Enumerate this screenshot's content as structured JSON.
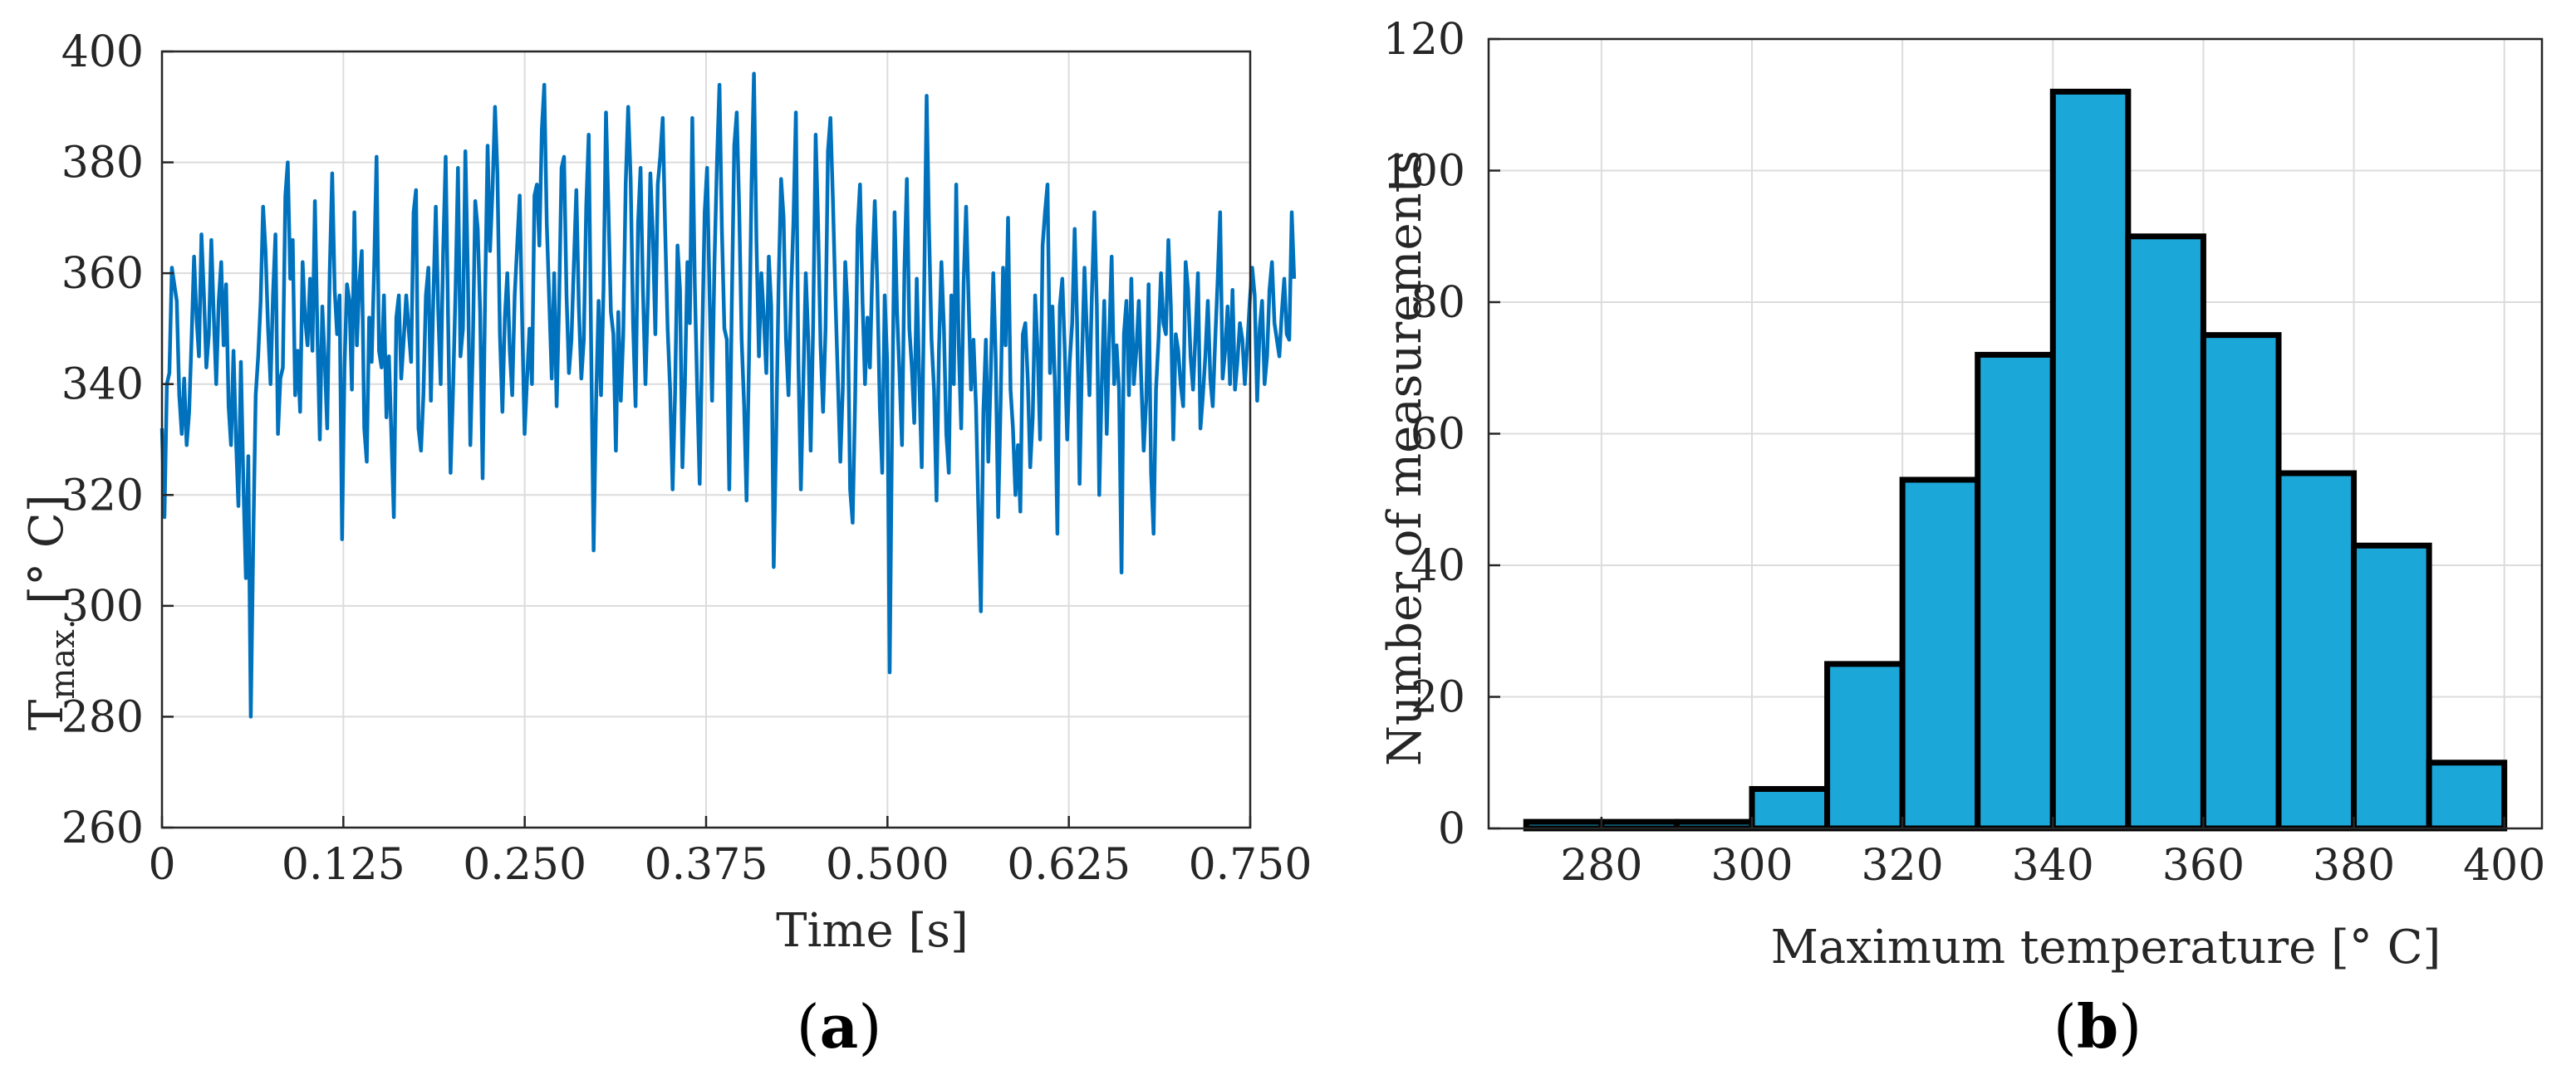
{
  "chart_data": [
    {
      "type": "line",
      "panel_label": "a",
      "xlabel": "Time [s]",
      "ylabel_main": "T",
      "ylabel_subscript": "max.",
      "ylabel_unit": " [° C]",
      "xlim": [
        0,
        0.75
      ],
      "ylim": [
        260,
        400
      ],
      "xticks": [
        0,
        0.125,
        0.25,
        0.375,
        0.5,
        0.625,
        0.75
      ],
      "xtick_labels": [
        "0",
        "0.125",
        "0.250",
        "0.375",
        "0.500",
        "0.625",
        "0.750"
      ],
      "yticks": [
        260,
        280,
        300,
        320,
        340,
        360,
        380,
        400
      ],
      "ytick_labels": [
        "260",
        "280",
        "300",
        "320",
        "340",
        "360",
        "380",
        "400"
      ],
      "grid": true,
      "line_color": "#0072BD",
      "series": [
        {
          "x_start": 0.0,
          "x_step": 0.0017,
          "values": [
            332,
            316,
            340,
            342,
            361,
            358,
            355,
            338,
            331,
            341,
            329,
            335,
            348,
            363,
            352,
            345,
            367,
            356,
            343,
            349,
            366,
            352,
            340,
            355,
            362,
            347,
            358,
            336,
            329,
            346,
            330,
            318,
            344,
            322,
            305,
            327,
            280,
            312,
            338,
            345,
            355,
            372,
            364,
            350,
            340,
            356,
            367,
            331,
            341,
            343,
            374,
            380,
            359,
            366,
            338,
            346,
            335,
            362,
            352,
            347,
            359,
            346,
            373,
            349,
            330,
            354,
            344,
            332,
            360,
            378,
            357,
            349,
            356,
            312,
            343,
            358,
            355,
            339,
            371,
            347,
            358,
            364,
            332,
            326,
            352,
            344,
            361,
            381,
            346,
            343,
            356,
            334,
            345,
            331,
            316,
            352,
            356,
            341,
            348,
            356,
            350,
            344,
            371,
            375,
            332,
            328,
            338,
            356,
            361,
            337,
            355,
            372,
            353,
            340,
            364,
            381,
            352,
            324,
            339,
            357,
            379,
            345,
            350,
            382,
            360,
            329,
            346,
            373,
            368,
            353,
            323,
            356,
            383,
            364,
            375,
            390,
            378,
            349,
            335,
            352,
            360,
            346,
            338,
            356,
            365,
            374,
            352,
            331,
            341,
            350,
            340,
            374,
            376,
            365,
            386,
            394,
            369,
            355,
            341,
            360,
            336,
            355,
            379,
            381,
            356,
            342,
            348,
            362,
            375,
            354,
            341,
            348,
            372,
            385,
            346,
            310,
            337,
            355,
            338,
            357,
            389,
            372,
            353,
            349,
            328,
            353,
            337,
            349,
            376,
            390,
            377,
            351,
            336,
            369,
            379,
            357,
            340,
            356,
            378,
            367,
            349,
            376,
            381,
            388,
            368,
            350,
            339,
            321,
            338,
            365,
            357,
            325,
            340,
            362,
            351,
            388,
            358,
            339,
            322,
            348,
            371,
            379,
            356,
            337,
            362,
            380,
            394,
            368,
            350,
            348,
            321,
            354,
            383,
            389,
            372,
            348,
            336,
            319,
            345,
            376,
            396,
            366,
            345,
            360,
            352,
            342,
            363,
            354,
            307,
            331,
            358,
            377,
            370,
            348,
            338,
            356,
            369,
            389,
            344,
            321,
            340,
            360,
            348,
            328,
            351,
            385,
            369,
            347,
            335,
            350,
            382,
            388,
            373,
            356,
            341,
            326,
            339,
            362,
            353,
            321,
            315,
            337,
            368,
            376,
            355,
            340,
            352,
            343,
            361,
            373,
            358,
            336,
            324,
            356,
            344,
            288,
            333,
            371,
            353,
            342,
            329,
            361,
            377,
            350,
            343,
            333,
            359,
            341,
            325,
            357,
            392,
            367,
            348,
            339,
            319,
            346,
            362,
            350,
            331,
            324,
            356,
            340,
            376,
            347,
            332,
            358,
            372,
            355,
            339,
            348,
            336,
            317,
            299,
            335,
            348,
            326,
            342,
            360,
            345,
            316,
            337,
            361,
            347,
            370,
            339,
            332,
            320,
            329,
            317,
            349,
            351,
            341,
            325,
            334,
            356,
            346,
            330,
            365,
            371,
            376,
            342,
            354,
            340,
            313,
            354,
            359,
            346,
            330,
            344,
            351,
            368,
            351,
            322,
            345,
            361,
            349,
            338,
            356,
            371,
            354,
            320,
            340,
            355,
            331,
            348,
            363,
            340,
            347,
            339,
            306,
            349,
            355,
            338,
            359,
            340,
            346,
            355,
            341,
            328,
            337,
            358,
            324,
            313,
            339,
            348,
            360,
            351,
            349,
            366,
            354,
            330,
            349,
            346,
            340,
            336,
            362,
            357,
            345,
            339,
            349,
            360,
            332,
            338,
            345,
            355,
            341,
            336,
            348,
            359,
            371,
            341,
            346,
            354,
            340,
            357,
            339,
            344,
            351,
            348,
            340,
            347,
            355,
            361,
            356,
            337,
            350,
            355,
            340,
            345,
            357,
            362,
            351,
            348,
            345,
            353,
            359,
            349,
            348,
            371,
            359
          ]
        }
      ]
    },
    {
      "type": "bar",
      "panel_label": "b",
      "xlabel": "Maximum temperature [° C]",
      "ylabel": "Number of measurements",
      "xlim": [
        265,
        405
      ],
      "ylim": [
        0,
        120
      ],
      "xticks": [
        280,
        300,
        320,
        340,
        360,
        380,
        400
      ],
      "xtick_labels": [
        "280",
        "300",
        "320",
        "340",
        "360",
        "380",
        "400"
      ],
      "yticks": [
        0,
        20,
        40,
        60,
        80,
        100,
        120
      ],
      "ytick_labels": [
        "0",
        "20",
        "40",
        "60",
        "80",
        "100",
        "120"
      ],
      "grid": true,
      "bar_color": "#1CA7D9",
      "edge_color": "#000000",
      "bin_edges": [
        270,
        280,
        290,
        300,
        310,
        320,
        330,
        340,
        350,
        360,
        370,
        380,
        390,
        400
      ],
      "values": [
        1,
        1,
        1,
        6,
        25,
        53,
        72,
        112,
        90,
        75,
        54,
        43,
        10
      ]
    }
  ]
}
